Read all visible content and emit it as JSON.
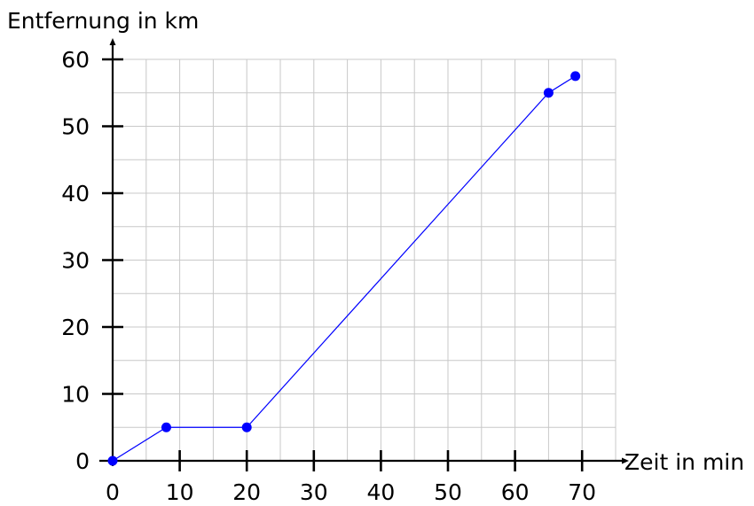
{
  "chart_data": {
    "type": "line",
    "title": "",
    "xlabel": "Zeit in min",
    "ylabel": "Entfernung in km",
    "xlim": [
      0,
      75
    ],
    "ylim": [
      0,
      60
    ],
    "x_ticks": [
      "0",
      "10",
      "20",
      "30",
      "40",
      "50",
      "60",
      "70"
    ],
    "y_ticks": [
      "0",
      "10",
      "20",
      "30",
      "40",
      "50",
      "60"
    ],
    "grid": true,
    "series": [
      {
        "color": "#0000ff",
        "points": [
          {
            "x": 0,
            "y": 0
          },
          {
            "x": 8,
            "y": 5
          },
          {
            "x": 20,
            "y": 5
          },
          {
            "x": 65,
            "y": 55
          },
          {
            "x": 69,
            "y": 57.5
          }
        ]
      }
    ]
  }
}
